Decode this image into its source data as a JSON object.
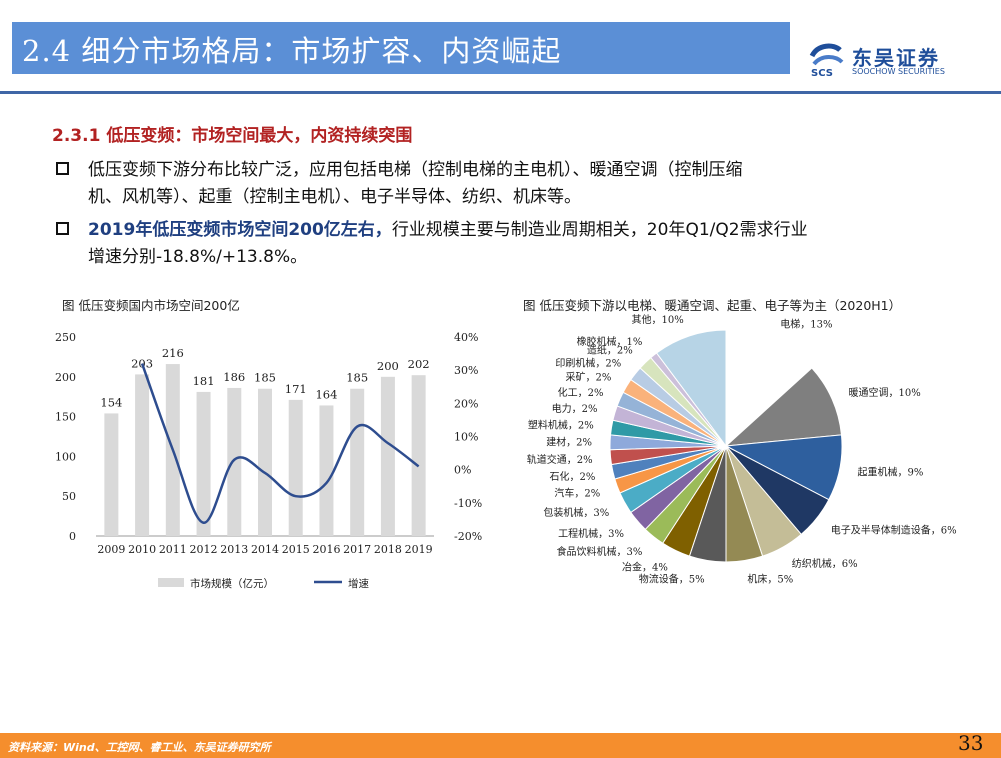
{
  "header": {
    "title": "2.4 细分市场格局：市场扩容、内资崛起",
    "logo_name": "东吴证券",
    "logo_sub": "SOOCHOW SECURITIES",
    "logo_badge": "SCS"
  },
  "section": {
    "subheading": "2.3.1 低压变频：市场空间最大，内资持续突围",
    "bullets": [
      {
        "lines": [
          "低压变频下游分布比较广泛，应用包括电梯（控制电梯的主电机）、暖通空调（控制压缩",
          "机、风机等）、起重（控制主电机）、电子半导体、纺织、机床等。"
        ]
      },
      {
        "bold": "2019年低压变频市场空间200亿左右，",
        "rest": "行业规模主要与制造业周期相关，20年Q1/Q2需求行业",
        "line2": "增速分别-18.8%/+13.8%。"
      }
    ]
  },
  "chart_data": [
    {
      "type": "bar",
      "title": "图 低压变频国内市场空间200亿",
      "categories": [
        "2009",
        "2010",
        "2011",
        "2012",
        "2013",
        "2014",
        "2015",
        "2016",
        "2017",
        "2018",
        "2019"
      ],
      "series": [
        {
          "name": "市场规模（亿元）",
          "type": "bar",
          "values": [
            154,
            203,
            216,
            181,
            186,
            185,
            171,
            164,
            185,
            200,
            202
          ]
        },
        {
          "name": "增速",
          "type": "line",
          "axis": "right",
          "values": [
            null,
            0.32,
            0.06,
            -0.16,
            0.03,
            -0.01,
            -0.08,
            -0.04,
            0.13,
            0.08,
            0.01
          ]
        }
      ],
      "ylim_left": [
        0,
        250
      ],
      "yticks_left": [
        "0",
        "50",
        "100",
        "150",
        "200",
        "250"
      ],
      "ylim_right": [
        -0.2,
        0.4
      ],
      "yticks_right": [
        "-20%",
        "-10%",
        "0%",
        "10%",
        "20%",
        "30%",
        "40%"
      ],
      "colors": {
        "bar": "#d9d9d9",
        "line": "#2e4d8f"
      },
      "legend_position": "bottom"
    },
    {
      "type": "pie",
      "title": "图 低压变频下游以电梯、暖通空调、起重、电子等为主（2020H1）",
      "slices": [
        {
          "label": "电梯",
          "pct": "13%",
          "value": 13,
          "color": "#ffffff"
        },
        {
          "label": "暖通空调",
          "pct": "10%",
          "value": 10,
          "color": "#7f7f7f"
        },
        {
          "label": "起重机械",
          "pct": "9%",
          "value": 9,
          "color": "#2e5f9e"
        },
        {
          "label": "电子及半导体制造设备",
          "pct": "6%",
          "value": 6,
          "color": "#1f3864"
        },
        {
          "label": "纺织机械",
          "pct": "6%",
          "value": 6,
          "color": "#c4bd97"
        },
        {
          "label": "机床",
          "pct": "5%",
          "value": 5,
          "color": "#948a54"
        },
        {
          "label": "物流设备",
          "pct": "5%",
          "value": 5,
          "color": "#595959"
        },
        {
          "label": "冶金",
          "pct": "4%",
          "value": 4,
          "color": "#7f6000"
        },
        {
          "label": "食品饮料机械",
          "pct": "3%",
          "value": 3,
          "color": "#9bbb59"
        },
        {
          "label": "工程机械",
          "pct": "3%",
          "value": 3,
          "color": "#8064a2"
        },
        {
          "label": "包装机械",
          "pct": "3%",
          "value": 3,
          "color": "#4bacc6"
        },
        {
          "label": "汽车",
          "pct": "2%",
          "value": 2,
          "color": "#f79646"
        },
        {
          "label": "石化",
          "pct": "2%",
          "value": 2,
          "color": "#4f81bd"
        },
        {
          "label": "轨道交通",
          "pct": "2%",
          "value": 2,
          "color": "#c0504d"
        },
        {
          "label": "建材",
          "pct": "2%",
          "value": 2,
          "color": "#8ea9db"
        },
        {
          "label": "塑料机械",
          "pct": "2%",
          "value": 2,
          "color": "#2f9aa6"
        },
        {
          "label": "电力",
          "pct": "2%",
          "value": 2,
          "color": "#c3b4d6"
        },
        {
          "label": "化工",
          "pct": "2%",
          "value": 2,
          "color": "#95b3d7"
        },
        {
          "label": "采矿",
          "pct": "2%",
          "value": 2,
          "color": "#fab27b"
        },
        {
          "label": "印刷机械",
          "pct": "2%",
          "value": 2,
          "color": "#b8cce4"
        },
        {
          "label": "造纸",
          "pct": "2%",
          "value": 2,
          "color": "#d7e4bd"
        },
        {
          "label": "橡胶机械",
          "pct": "1%",
          "value": 1,
          "color": "#ccc0da"
        },
        {
          "label": "其他",
          "pct": "10%",
          "value": 10,
          "color": "#b7d4e6"
        }
      ]
    }
  ],
  "footer": {
    "source": "资料来源：Wind、工控网、睿工业、东吴证券研究所",
    "page": "33"
  }
}
